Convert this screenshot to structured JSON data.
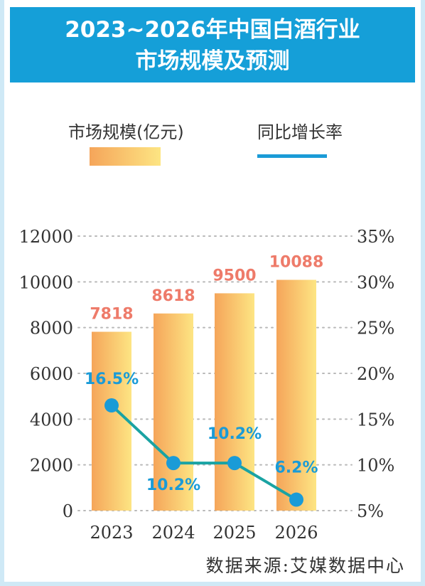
{
  "title": {
    "line1": "2023~2026年中国白酒行业",
    "line2": "市场规模及预测"
  },
  "legend": {
    "bar_label": "市场规模(亿元)",
    "line_label": "同比增长率"
  },
  "source": "数据来源:艾媒数据中心",
  "colors": {
    "title_bg": "#159fd8",
    "bar_start": "#f5a55a",
    "bar_end": "#fde583",
    "bar_value_label": "#ee7b6a",
    "line": "#1aa3a3",
    "marker": "#1a9bd7",
    "rate_label": "#1a9bd7"
  },
  "chart_data": {
    "type": "bar",
    "categories": [
      "2023",
      "2024",
      "2025",
      "2026"
    ],
    "series": [
      {
        "name": "市场规模(亿元)",
        "type": "bar",
        "axis": "left",
        "values": [
          7818,
          8618,
          9500,
          10088
        ],
        "labels": [
          "7818",
          "8618",
          "9500",
          "10088"
        ]
      },
      {
        "name": "同比增长率",
        "type": "line",
        "axis": "right",
        "values": [
          16.5,
          10.2,
          10.2,
          6.2
        ],
        "labels": [
          "16.5%",
          "10.2%",
          "10.2%",
          "6.2%"
        ]
      }
    ],
    "y_left": {
      "ticks": [
        "0",
        "2000",
        "4000",
        "6000",
        "8000",
        "10000",
        "12000"
      ],
      "ylim": [
        0,
        12000
      ]
    },
    "y_right": {
      "ticks": [
        "5%",
        "10%",
        "15%",
        "20%",
        "25%",
        "30%",
        "35%"
      ],
      "ylim": [
        5,
        35
      ]
    },
    "grid": true
  }
}
